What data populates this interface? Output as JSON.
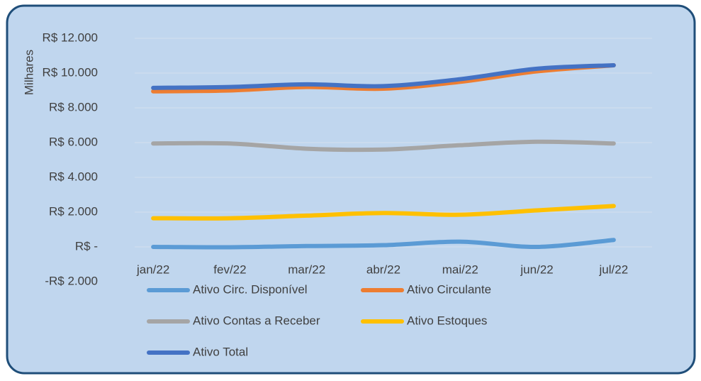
{
  "chart_data": {
    "type": "line",
    "y_label": "Milhares",
    "categories": [
      "jan/22",
      "fev/22",
      "mar/22",
      "abr/22",
      "mai/22",
      "jun/22",
      "jul/22"
    ],
    "series": [
      {
        "name": "Ativo Circ. Disponível",
        "color": "#5b9bd5",
        "values": [
          0,
          -20,
          50,
          100,
          300,
          0,
          400
        ]
      },
      {
        "name": "Ativo Circulante",
        "color": "#ed7d31",
        "values": [
          8950,
          9000,
          9200,
          9100,
          9500,
          10100,
          10450
        ]
      },
      {
        "name": "Ativo Contas a Receber",
        "color": "#a5a5a5",
        "values": [
          5950,
          5950,
          5650,
          5600,
          5850,
          6050,
          5950
        ]
      },
      {
        "name": "Ativo Estoques",
        "color": "#ffc000",
        "values": [
          1650,
          1650,
          1800,
          1950,
          1850,
          2100,
          2350
        ]
      },
      {
        "name": "Ativo Total",
        "color": "#4472c4",
        "values": [
          9150,
          9200,
          9350,
          9250,
          9650,
          10250,
          10450
        ]
      }
    ],
    "ylim": [
      -2000,
      12000
    ],
    "yticks": [
      {
        "value": -2000,
        "label": "-R$ 2.000"
      },
      {
        "value": 0,
        "label": "R$ -"
      },
      {
        "value": 2000,
        "label": "R$ 2.000"
      },
      {
        "value": 4000,
        "label": "R$ 4.000"
      },
      {
        "value": 6000,
        "label": "R$ 6.000"
      },
      {
        "value": 8000,
        "label": "R$ 8.000"
      },
      {
        "value": 10000,
        "label": "R$ 10.000"
      },
      {
        "value": 12000,
        "label": "R$ 12.000"
      }
    ],
    "grid": true,
    "smooth": true,
    "legend": "bottom"
  }
}
